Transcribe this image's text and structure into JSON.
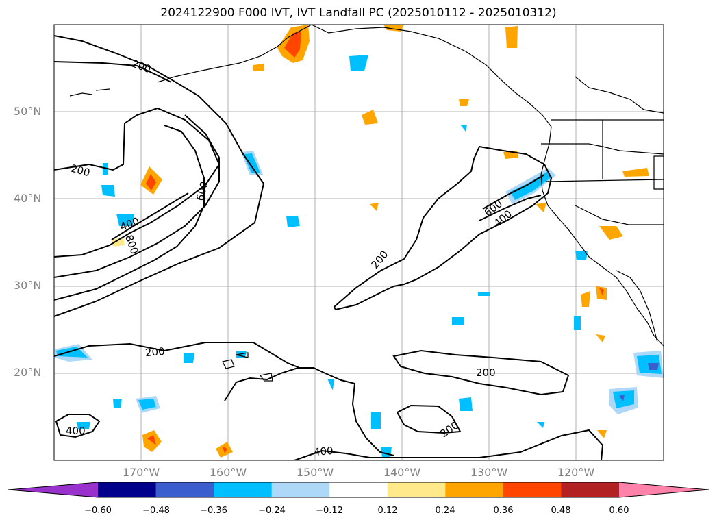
{
  "title": "2024122900 F000 IVT, IVT Landfall PC (2025010112 - 2025010312)",
  "map": {
    "projection": "lat-lon",
    "lon_range": [
      -180,
      -110
    ],
    "lat_range": [
      10,
      60
    ],
    "grid": true,
    "lat_labels": [
      "50°N",
      "40°N",
      "30°N",
      "20°N"
    ],
    "lon_labels": [
      "170°W",
      "160°W",
      "150°W",
      "140°W",
      "130°W",
      "120°W"
    ],
    "contour_labels": [
      "200",
      "200",
      "600",
      "400",
      "800",
      "200",
      "200",
      "600",
      "400",
      "200",
      "200",
      "400",
      "400"
    ]
  },
  "colorbar": {
    "levels": [
      "−0.60",
      "−0.48",
      "−0.36",
      "−0.24",
      "−0.12",
      "0.12",
      "0.24",
      "0.36",
      "0.48",
      "0.60"
    ],
    "colors": [
      "#9932cc",
      "#00008b",
      "#3a5fcd",
      "#00bfff",
      "#add8f7",
      "#ffffff",
      "#ffe98a",
      "#ffa500",
      "#ff4500",
      "#b22222",
      "#ff82ab"
    ],
    "extend": "both"
  }
}
